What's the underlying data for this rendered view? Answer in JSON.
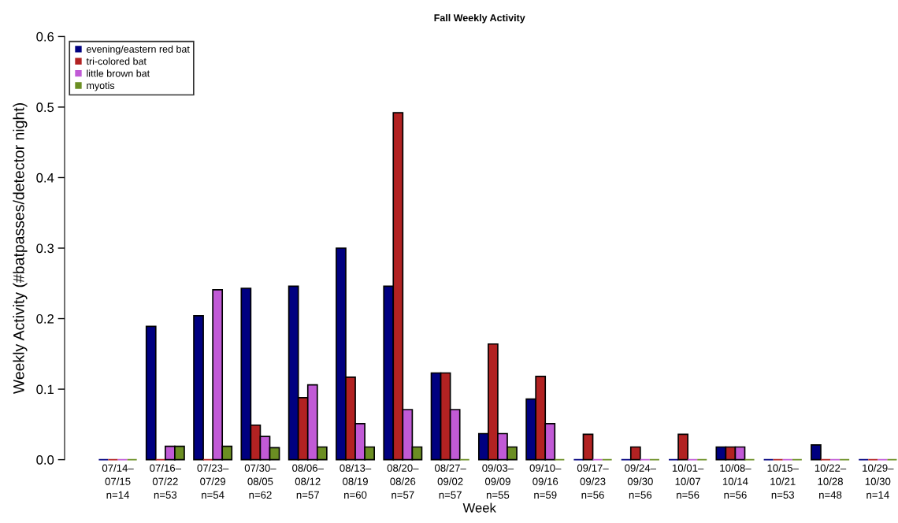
{
  "chart_data": {
    "type": "bar",
    "title": "Fall Weekly Activity",
    "xlabel": "Week",
    "ylabel": "Weekly Activity (#batpasses/detector night)",
    "categories": [
      "07/14–\n07/15\nn=14",
      "07/16–\n07/22\nn=53",
      "07/23–\n07/29\nn=54",
      "07/30–\n08/05\nn=62",
      "08/06–\n08/12\nn=57",
      "08/13–\n08/19\nn=60",
      "08/20–\n08/26\nn=57",
      "08/27–\n09/02\nn=57",
      "09/03–\n09/09\nn=55",
      "09/10–\n09/16\nn=59",
      "09/17–\n09/23\nn=56",
      "09/24–\n09/30\nn=56",
      "10/01–\n10/07\nn=56",
      "10/08–\n10/14\nn=56",
      "10/15–\n10/21\nn=53",
      "10/22–\n10/28\nn=48",
      "10/29–\n10/30\nn=14"
    ],
    "series": [
      {
        "name": "evening/eastern red bat",
        "color": "#000080",
        "values": [
          0,
          0.189,
          0.204,
          0.243,
          0.246,
          0.3,
          0.246,
          0.123,
          0.037,
          0.086,
          0,
          0,
          0,
          0.018,
          0,
          0.021,
          0
        ]
      },
      {
        "name": "tri-colored bat",
        "color": "#b22222",
        "values": [
          0,
          0,
          0,
          0.049,
          0.088,
          0.117,
          0.492,
          0.123,
          0.164,
          0.118,
          0.036,
          0.018,
          0.036,
          0.018,
          0,
          0,
          0
        ]
      },
      {
        "name": "little brown bat",
        "color": "#c15ad6",
        "values": [
          0,
          0.019,
          0.241,
          0.033,
          0.106,
          0.051,
          0.071,
          0.071,
          0.037,
          0.051,
          0,
          0,
          0,
          0.018,
          0,
          0,
          0
        ]
      },
      {
        "name": "myotis",
        "color": "#6b8e23",
        "values": [
          0,
          0.019,
          0.019,
          0.017,
          0.018,
          0.018,
          0.018,
          0,
          0.018,
          0,
          0,
          0,
          0,
          0,
          0,
          0,
          0
        ]
      }
    ],
    "ylim": [
      0,
      0.6
    ],
    "yticks": [
      {
        "value": 0,
        "label": "0.0"
      },
      0.1,
      0.2,
      0.3,
      0.4,
      0.5,
      0.6
    ],
    "legend": "top left",
    "grid": false
  }
}
